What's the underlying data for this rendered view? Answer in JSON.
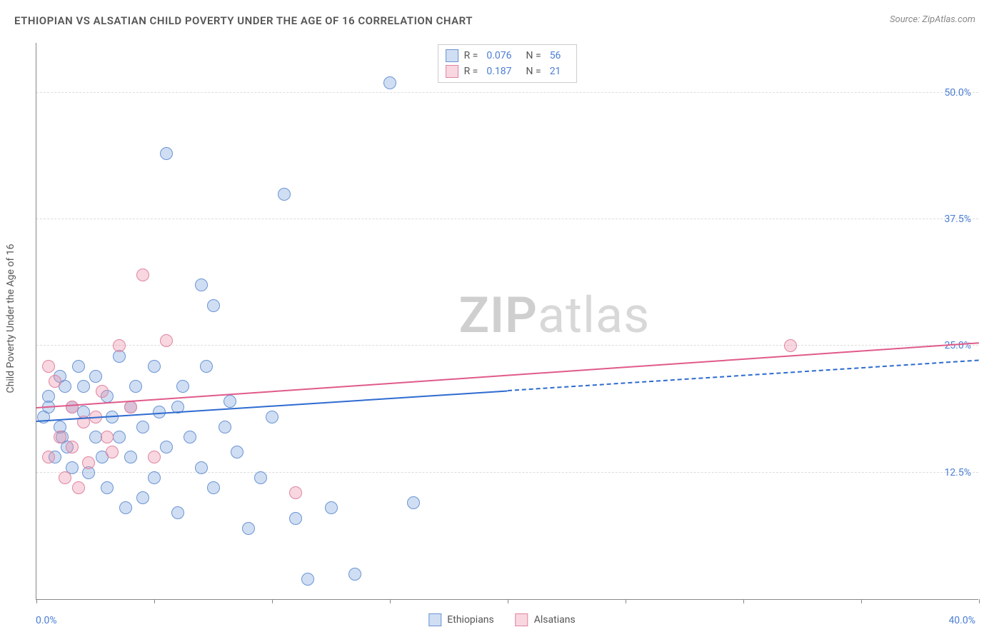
{
  "title": "ETHIOPIAN VS ALSATIAN CHILD POVERTY UNDER THE AGE OF 16 CORRELATION CHART",
  "source": "Source: ZipAtlas.com",
  "watermark": {
    "bold": "ZIP",
    "rest": "atlas"
  },
  "chart": {
    "type": "scatter",
    "background_color": "#ffffff",
    "grid_color": "#dddddd",
    "axis_color": "#888888",
    "label_color": "#4a7dd4",
    "text_color": "#555555",
    "y_axis_title": "Child Poverty Under the Age of 16",
    "xlim": [
      0,
      40
    ],
    "ylim": [
      0,
      55
    ],
    "x_ticks": [
      0,
      5,
      10,
      15,
      20,
      25,
      30,
      35,
      40
    ],
    "x_tick_labels": {
      "0": "0.0%",
      "40": "40.0%"
    },
    "y_gridlines": [
      12.5,
      25.0,
      37.5,
      50.0
    ],
    "y_tick_labels": [
      "12.5%",
      "25.0%",
      "37.5%",
      "50.0%"
    ],
    "point_radius": 9,
    "series": [
      {
        "name": "Ethiopians",
        "fill": "rgba(120,160,220,0.35)",
        "stroke": "#6a94d4",
        "trend_color": "#2e6bd0",
        "R": "0.076",
        "N": "56",
        "trend": {
          "x1": 0,
          "y1": 17.5,
          "x2": 20,
          "y2": 20.5,
          "dash_to_x": 40,
          "dash_to_y": 23.5
        },
        "points": [
          [
            0.3,
            18
          ],
          [
            0.5,
            20
          ],
          [
            0.5,
            19
          ],
          [
            0.8,
            14
          ],
          [
            1.0,
            22
          ],
          [
            1.0,
            17
          ],
          [
            1.1,
            16
          ],
          [
            1.2,
            21
          ],
          [
            1.3,
            15
          ],
          [
            1.5,
            19
          ],
          [
            1.5,
            13
          ],
          [
            1.8,
            23
          ],
          [
            2.0,
            18.5
          ],
          [
            2.0,
            21
          ],
          [
            2.2,
            12.5
          ],
          [
            2.5,
            16
          ],
          [
            2.5,
            22
          ],
          [
            2.8,
            14
          ],
          [
            3.0,
            20
          ],
          [
            3.0,
            11
          ],
          [
            3.2,
            18
          ],
          [
            3.5,
            24
          ],
          [
            3.5,
            16
          ],
          [
            3.8,
            9
          ],
          [
            4.0,
            19
          ],
          [
            4.0,
            14
          ],
          [
            4.2,
            21
          ],
          [
            4.5,
            17
          ],
          [
            4.5,
            10
          ],
          [
            5.0,
            23
          ],
          [
            5.0,
            12
          ],
          [
            5.2,
            18.5
          ],
          [
            5.5,
            44
          ],
          [
            5.5,
            15
          ],
          [
            6.0,
            19
          ],
          [
            6.0,
            8.5
          ],
          [
            6.2,
            21
          ],
          [
            6.5,
            16
          ],
          [
            7.0,
            31
          ],
          [
            7.0,
            13
          ],
          [
            7.2,
            23
          ],
          [
            7.5,
            29
          ],
          [
            7.5,
            11
          ],
          [
            8.0,
            17
          ],
          [
            8.2,
            19.5
          ],
          [
            8.5,
            14.5
          ],
          [
            9.0,
            7
          ],
          [
            9.5,
            12
          ],
          [
            10.0,
            18
          ],
          [
            10.5,
            40
          ],
          [
            11.0,
            8
          ],
          [
            11.5,
            2
          ],
          [
            12.5,
            9
          ],
          [
            13.5,
            2.5
          ],
          [
            15.0,
            51
          ],
          [
            16.0,
            9.5
          ]
        ]
      },
      {
        "name": "Alsatians",
        "fill": "rgba(235,140,165,0.35)",
        "stroke": "#e084a0",
        "trend_color": "#e05a8a",
        "R": "0.187",
        "N": "21",
        "trend": {
          "x1": 0,
          "y1": 18.8,
          "x2": 40,
          "y2": 25.2
        },
        "points": [
          [
            0.5,
            23
          ],
          [
            0.5,
            14
          ],
          [
            0.8,
            21.5
          ],
          [
            1.0,
            16
          ],
          [
            1.2,
            12
          ],
          [
            1.5,
            19
          ],
          [
            1.5,
            15
          ],
          [
            1.8,
            11
          ],
          [
            2.0,
            17.5
          ],
          [
            2.2,
            13.5
          ],
          [
            2.5,
            18
          ],
          [
            2.8,
            20.5
          ],
          [
            3.0,
            16
          ],
          [
            3.2,
            14.5
          ],
          [
            3.5,
            25
          ],
          [
            4.0,
            19
          ],
          [
            4.5,
            32
          ],
          [
            5.0,
            14
          ],
          [
            5.5,
            25.5
          ],
          [
            11.0,
            10.5
          ],
          [
            32.0,
            25
          ]
        ]
      }
    ],
    "legend_top_labels": {
      "R": "R =",
      "N": "N ="
    },
    "legend_bottom": [
      "Ethiopians",
      "Alsatians"
    ]
  }
}
